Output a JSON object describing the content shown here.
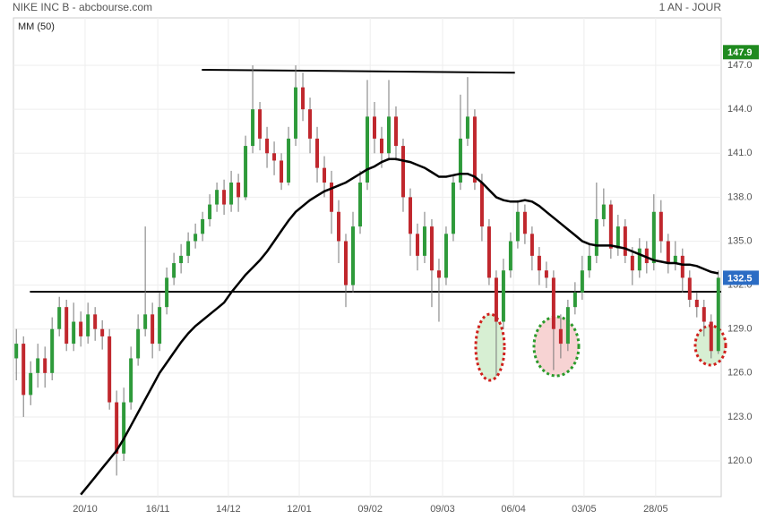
{
  "chart_data": {
    "type": "candlestick",
    "title": "NIKE INC B - abcbourse.com",
    "subtitle": "1 AN - JOUR",
    "up_color": "#2e9a3a",
    "down_color": "#c0272d",
    "open": [
      127,
      128,
      124.5,
      126,
      127,
      126,
      129,
      130.5,
      128,
      129.5,
      128.5,
      130,
      129,
      128.5,
      124,
      120.5,
      124,
      127,
      129,
      130,
      128,
      130.5,
      132.5,
      133.5,
      134,
      135,
      135.5,
      136.5,
      137.5,
      138.5,
      137.5,
      139,
      138,
      141.5,
      144,
      142,
      141,
      140.5,
      139,
      142,
      145.5,
      144,
      142,
      140,
      139,
      137,
      135,
      132,
      136,
      139,
      143.5,
      142,
      141,
      143.5,
      141.5,
      138,
      135.5,
      134,
      136,
      133,
      132.5,
      135.5,
      139,
      142,
      143.5,
      139,
      136,
      132.5,
      129.5,
      133,
      135,
      137,
      135.5,
      134,
      133,
      132.5,
      129,
      128,
      130.5,
      131.5,
      133,
      134,
      136.5,
      137.5,
      134.5,
      136,
      134,
      133,
      134.5,
      133.5,
      137,
      135,
      133.5,
      134,
      132.5,
      131,
      130.5,
      129.5,
      127.5
    ],
    "high": [
      129,
      128.5,
      126.8,
      128,
      127.8,
      129.8,
      131.2,
      131,
      130.8,
      130.2,
      130.8,
      130.5,
      129.6,
      129,
      124.8,
      125,
      127.8,
      130,
      136,
      130.8,
      131.5,
      133.2,
      134.2,
      134.8,
      135.6,
      136.2,
      137,
      138.2,
      139,
      139.2,
      139.8,
      139.6,
      142.2,
      147,
      144.5,
      142.8,
      141.8,
      141,
      142.8,
      147,
      146.5,
      144.8,
      142.8,
      140.8,
      139.8,
      137.8,
      135.5,
      137,
      139.8,
      146,
      144.5,
      142.8,
      146,
      144.2,
      142,
      138.6,
      136.2,
      137,
      136.5,
      133.8,
      136,
      139.5,
      145,
      146.2,
      144,
      139.6,
      136.5,
      133,
      133.8,
      135.6,
      137.8,
      137.5,
      136,
      134.6,
      133.6,
      133,
      130,
      131,
      132.2,
      134,
      134.8,
      139,
      138.6,
      137.8,
      136.8,
      136.5,
      134.6,
      135.2,
      135,
      138.2,
      137.8,
      135.5,
      135,
      134.5,
      133,
      131.5,
      131,
      130,
      133
    ],
    "low": [
      125.5,
      123,
      123.8,
      125,
      125,
      125.5,
      128.5,
      127.5,
      127.5,
      127.8,
      128,
      128.2,
      127.6,
      123.5,
      119,
      120,
      123.5,
      126.5,
      128.5,
      127,
      127.5,
      130,
      132,
      132.8,
      133.5,
      134.5,
      135,
      136,
      137,
      136.8,
      137,
      137,
      137.8,
      141,
      141.2,
      140,
      139.5,
      138.5,
      138.8,
      141.5,
      143.2,
      141,
      139,
      138,
      135.5,
      133.5,
      130.5,
      131.5,
      135.5,
      138.5,
      141,
      140,
      140.5,
      140.5,
      137,
      134,
      133,
      133.5,
      130.5,
      129.5,
      132,
      135,
      138.5,
      141.5,
      138.5,
      135,
      132,
      125.8,
      129,
      132.5,
      134.5,
      134.8,
      133,
      132,
      131.8,
      126.2,
      127,
      127.5,
      130,
      131,
      132.5,
      133.5,
      136,
      133.8,
      134,
      133.5,
      132,
      132.5,
      132.8,
      133,
      134.2,
      132.8,
      133,
      131.5,
      130.5,
      129.8,
      128.5,
      127,
      127.3
    ],
    "close": [
      128,
      124.5,
      126,
      127,
      126,
      129,
      130.5,
      128,
      129.5,
      128.5,
      130,
      129,
      128.5,
      124,
      120.5,
      124,
      127,
      129,
      130,
      128,
      130.5,
      132.5,
      133.5,
      134,
      135,
      135.5,
      136.5,
      137.5,
      138.5,
      137.5,
      139,
      138,
      141.5,
      144,
      142,
      141,
      140.5,
      139,
      142,
      145.5,
      144,
      142,
      140,
      139,
      137,
      135,
      132,
      136,
      139,
      143.5,
      142,
      141,
      143.5,
      141.5,
      138,
      135.5,
      134,
      136,
      133,
      132.5,
      135.5,
      139,
      142,
      143.5,
      139,
      136,
      132.5,
      129.5,
      133,
      135,
      137,
      135.5,
      134,
      133,
      132.5,
      129,
      128,
      130.5,
      131.5,
      133,
      134,
      136.5,
      137.5,
      134.5,
      136,
      134,
      133,
      134.5,
      133.5,
      137,
      135,
      133.5,
      134,
      132.5,
      131,
      130.5,
      129.5,
      127.5,
      132.5
    ],
    "series": [
      {
        "name": "MM (50)",
        "color": "#000000",
        "values": [
          null,
          null,
          null,
          null,
          null,
          null,
          null,
          null,
          null,
          117.7,
          118.3,
          118.9,
          119.5,
          120.1,
          120.7,
          121.5,
          122.4,
          123.3,
          124.2,
          125.1,
          126,
          126.7,
          127.4,
          128.1,
          128.7,
          129.2,
          129.6,
          130,
          130.4,
          130.8,
          131.5,
          132.1,
          132.7,
          133.2,
          133.7,
          134.3,
          135,
          135.7,
          136.4,
          137,
          137.4,
          137.8,
          138.1,
          138.4,
          138.6,
          138.8,
          139,
          139.3,
          139.6,
          139.9,
          140.1,
          140.4,
          140.6,
          140.6,
          140.5,
          140.4,
          140.2,
          140,
          139.7,
          139.4,
          139.4,
          139.5,
          139.6,
          139.6,
          139.4,
          139,
          138.5,
          138,
          137.8,
          137.7,
          137.7,
          137.8,
          137.7,
          137.4,
          137,
          136.6,
          136.2,
          135.8,
          135.4,
          135,
          134.8,
          134.7,
          134.7,
          134.7,
          134.6,
          134.5,
          134.3,
          134.1,
          133.9,
          133.7,
          133.6,
          133.5,
          133.5,
          133.4,
          133.4,
          133.3,
          133.1,
          132.9,
          132.8
        ]
      }
    ],
    "trend_lines": [
      {
        "x": [
          25.9,
          69.6
        ],
        "y": [
          146.7,
          146.5
        ]
      },
      {
        "x": [
          1.9,
          98.4
        ],
        "y": [
          131.55,
          131.55
        ]
      }
    ],
    "price_tags": [
      {
        "value": 147.9,
        "color": "#1f8a1f"
      },
      {
        "value": 132.5,
        "color": "#2b6cc4"
      }
    ],
    "xlim": [
      -0.4,
      98.4
    ],
    "xticks": [
      {
        "value": 9.6,
        "label": "20/10"
      },
      {
        "value": 19.75,
        "label": "16/11"
      },
      {
        "value": 29.6,
        "label": "14/12"
      },
      {
        "value": 39.5,
        "label": "12/01"
      },
      {
        "value": 49.4,
        "label": "09/02"
      },
      {
        "value": 59.5,
        "label": "09/03"
      },
      {
        "value": 69.4,
        "label": "06/04"
      },
      {
        "value": 79.25,
        "label": "03/05"
      },
      {
        "value": 89.25,
        "label": "28/05"
      }
    ],
    "ylim": [
      117.56,
      150.24
    ],
    "yticks": [
      {
        "value": 120,
        "label": "120.0"
      },
      {
        "value": 123,
        "label": "123.0"
      },
      {
        "value": 126,
        "label": "126.0"
      },
      {
        "value": 129,
        "label": "129.0"
      },
      {
        "value": 132,
        "label": "132.0"
      },
      {
        "value": 135,
        "label": "135.0"
      },
      {
        "value": 138,
        "label": "138.0"
      },
      {
        "value": 141,
        "label": "141.0"
      },
      {
        "value": 144,
        "label": "144.0"
      },
      {
        "value": 147,
        "label": "147.0"
      }
    ],
    "grid": true
  }
}
